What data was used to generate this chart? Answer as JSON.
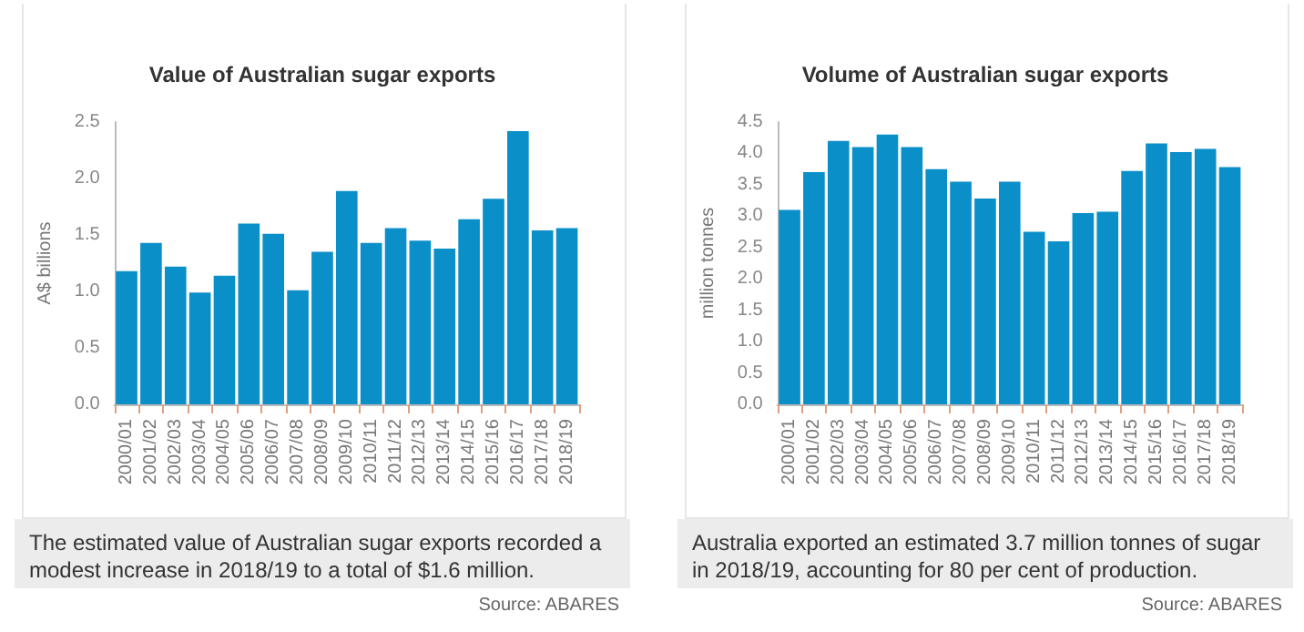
{
  "chart_data": [
    {
      "type": "bar",
      "title": "Value of Australian sugar exports",
      "ylabel": "A$ billions",
      "categories": [
        "2000/01",
        "2001/02",
        "2002/03",
        "2003/04",
        "2004/05",
        "2005/06",
        "2006/07",
        "2007/08",
        "2008/09",
        "2009/10",
        "2010/11",
        "2011/12",
        "2012/13",
        "2013/14",
        "2014/15",
        "2015/16",
        "2016/17",
        "2017/18",
        "2018/19"
      ],
      "values": [
        1.18,
        1.43,
        1.22,
        0.99,
        1.14,
        1.6,
        1.51,
        1.01,
        1.35,
        1.89,
        1.43,
        1.56,
        1.45,
        1.38,
        1.64,
        1.82,
        2.42,
        1.54,
        1.56
      ],
      "color": "#0b8fc8",
      "ylim": [
        0,
        2.5
      ],
      "yticks": [
        {
          "value": 0,
          "label": "0.0"
        },
        0.5,
        {
          "value": 1,
          "label": "1.0"
        },
        1.5,
        {
          "value": 2,
          "label": "2.0"
        },
        2.5
      ],
      "grid": false,
      "annotations": [
        "The estimated value of Australian sugar exports recorded a modest increase in 2018/19 to a total of $1.6 million.",
        "Source: ABARES"
      ]
    },
    {
      "type": "bar",
      "title": "Volume of Australian sugar exports",
      "ylabel": "million tonnes",
      "categories": [
        "2000/01",
        "2001/02",
        "2002/03",
        "2003/04",
        "2004/05",
        "2005/06",
        "2006/07",
        "2007/08",
        "2008/09",
        "2009/10",
        "2010/11",
        "2011/12",
        "2012/13",
        "2013/14",
        "2014/15",
        "2015/16",
        "2016/17",
        "2017/18",
        "2018/19"
      ],
      "values": [
        3.1,
        3.7,
        4.2,
        4.1,
        4.3,
        4.1,
        3.75,
        3.55,
        3.28,
        3.55,
        2.75,
        2.6,
        3.05,
        3.07,
        3.72,
        4.16,
        4.02,
        4.07,
        3.78
      ],
      "color": "#0b8fc8",
      "ylim": [
        0,
        4.5
      ],
      "yticks": [
        {
          "value": 0,
          "label": "0.0"
        },
        0.5,
        {
          "value": 1,
          "label": "1.0"
        },
        1.5,
        {
          "value": 2,
          "label": "2.0"
        },
        2.5,
        {
          "value": 3,
          "label": "3.0"
        },
        3.5,
        {
          "value": 4,
          "label": "4.0"
        },
        4.5
      ],
      "grid": false,
      "annotations": [
        "Australia exported an estimated 3.7 million tonnes of sugar in 2018/19, accounting for 80 per cent of production.",
        "Source: ABARES"
      ]
    }
  ]
}
